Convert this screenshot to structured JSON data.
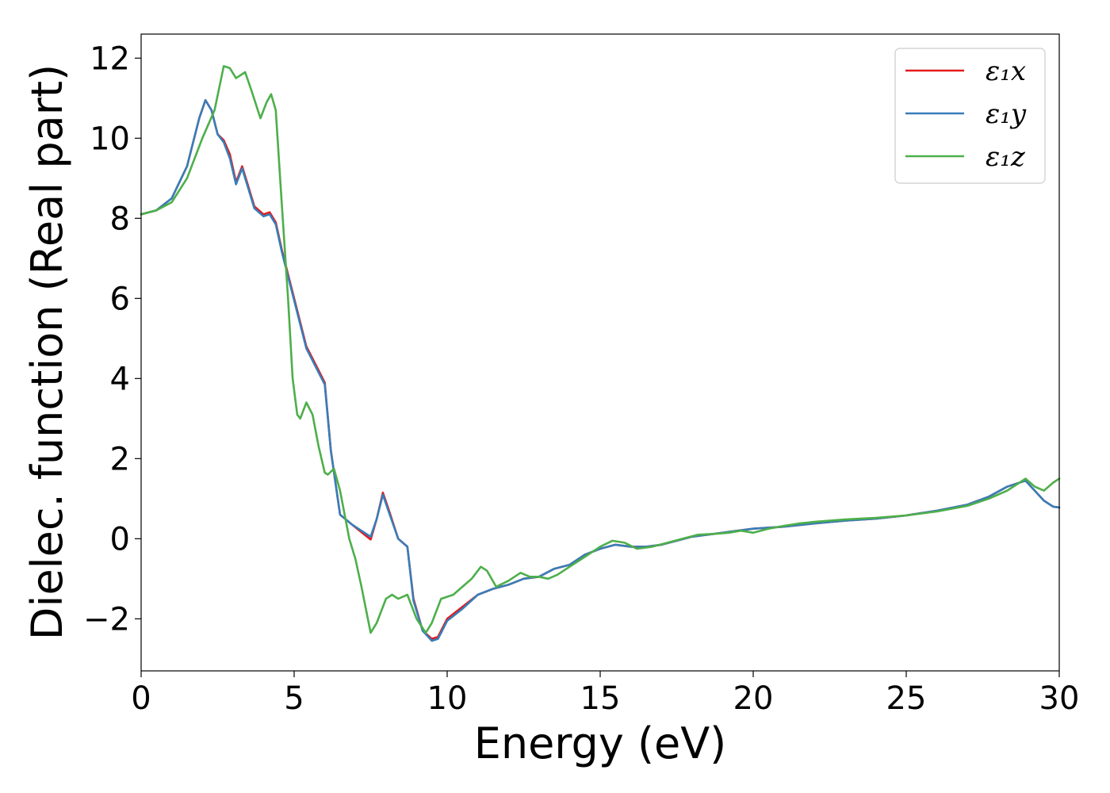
{
  "chart_data": {
    "type": "line",
    "xlabel": "Energy (eV)",
    "ylabel": "Dielec. function (Real part)",
    "xlim": [
      0,
      30
    ],
    "ylim": [
      -3.3,
      12.6
    ],
    "xticks": [
      0,
      5,
      10,
      15,
      20,
      25,
      30
    ],
    "xtick_labels": [
      "0",
      "5",
      "10",
      "15",
      "20",
      "25",
      "30"
    ],
    "yticks": [
      -2,
      0,
      2,
      4,
      6,
      8,
      10,
      12
    ],
    "ytick_labels": [
      "−2",
      "0",
      "2",
      "4",
      "6",
      "8",
      "10",
      "12"
    ],
    "grid": false,
    "legend_position": "top-right",
    "series": [
      {
        "name": "ε₁x",
        "color": "#e41a1c",
        "points": [
          [
            0,
            8.1
          ],
          [
            0.5,
            8.2
          ],
          [
            1.0,
            8.5
          ],
          [
            1.5,
            9.3
          ],
          [
            1.9,
            10.5
          ],
          [
            2.1,
            10.95
          ],
          [
            2.3,
            10.7
          ],
          [
            2.5,
            10.1
          ],
          [
            2.7,
            9.95
          ],
          [
            2.9,
            9.6
          ],
          [
            3.1,
            8.9
          ],
          [
            3.3,
            9.3
          ],
          [
            3.5,
            8.8
          ],
          [
            3.7,
            8.3
          ],
          [
            4.0,
            8.1
          ],
          [
            4.2,
            8.15
          ],
          [
            4.4,
            7.9
          ],
          [
            4.6,
            7.2
          ],
          [
            5.0,
            6.0
          ],
          [
            5.4,
            4.8
          ],
          [
            5.8,
            4.2
          ],
          [
            6.0,
            3.9
          ],
          [
            6.2,
            2.2
          ],
          [
            6.5,
            0.6
          ],
          [
            6.9,
            0.35
          ],
          [
            7.3,
            0.1
          ],
          [
            7.5,
            -0.02
          ],
          [
            7.7,
            0.5
          ],
          [
            7.9,
            1.15
          ],
          [
            8.1,
            0.7
          ],
          [
            8.4,
            0.0
          ],
          [
            8.7,
            -0.2
          ],
          [
            8.9,
            -1.5
          ],
          [
            9.2,
            -2.3
          ],
          [
            9.5,
            -2.5
          ],
          [
            9.7,
            -2.45
          ],
          [
            10.0,
            -2.0
          ],
          [
            10.5,
            -1.7
          ],
          [
            11.0,
            -1.4
          ],
          [
            11.5,
            -1.25
          ],
          [
            12.0,
            -1.15
          ],
          [
            12.5,
            -1.0
          ],
          [
            13.0,
            -0.95
          ],
          [
            13.5,
            -0.75
          ],
          [
            14.0,
            -0.65
          ],
          [
            14.5,
            -0.4
          ],
          [
            15.0,
            -0.25
          ],
          [
            15.5,
            -0.15
          ],
          [
            16.0,
            -0.2
          ],
          [
            16.5,
            -0.2
          ],
          [
            17.0,
            -0.15
          ],
          [
            17.5,
            -0.05
          ],
          [
            18.0,
            0.05
          ],
          [
            18.5,
            0.1
          ],
          [
            19.0,
            0.15
          ],
          [
            19.5,
            0.2
          ],
          [
            20.0,
            0.25
          ],
          [
            21.0,
            0.3
          ],
          [
            22.0,
            0.38
          ],
          [
            23.0,
            0.45
          ],
          [
            24.0,
            0.5
          ],
          [
            25.0,
            0.58
          ],
          [
            26.0,
            0.7
          ],
          [
            27.0,
            0.85
          ],
          [
            27.7,
            1.05
          ],
          [
            28.3,
            1.3
          ],
          [
            28.9,
            1.45
          ],
          [
            29.2,
            1.2
          ],
          [
            29.5,
            0.95
          ],
          [
            29.8,
            0.8
          ],
          [
            30.0,
            0.78
          ]
        ]
      },
      {
        "name": "ε₁y",
        "color": "#377eb8",
        "points": [
          [
            0,
            8.1
          ],
          [
            0.5,
            8.2
          ],
          [
            1.0,
            8.5
          ],
          [
            1.5,
            9.3
          ],
          [
            1.9,
            10.5
          ],
          [
            2.1,
            10.95
          ],
          [
            2.3,
            10.7
          ],
          [
            2.5,
            10.1
          ],
          [
            2.7,
            9.9
          ],
          [
            2.9,
            9.5
          ],
          [
            3.1,
            8.85
          ],
          [
            3.3,
            9.25
          ],
          [
            3.5,
            8.75
          ],
          [
            3.7,
            8.25
          ],
          [
            4.0,
            8.05
          ],
          [
            4.2,
            8.1
          ],
          [
            4.4,
            7.85
          ],
          [
            4.6,
            7.15
          ],
          [
            5.0,
            5.95
          ],
          [
            5.4,
            4.75
          ],
          [
            5.8,
            4.15
          ],
          [
            6.0,
            3.85
          ],
          [
            6.2,
            2.2
          ],
          [
            6.5,
            0.6
          ],
          [
            6.9,
            0.35
          ],
          [
            7.3,
            0.15
          ],
          [
            7.5,
            0.05
          ],
          [
            7.7,
            0.5
          ],
          [
            7.9,
            1.1
          ],
          [
            8.1,
            0.65
          ],
          [
            8.4,
            0.0
          ],
          [
            8.7,
            -0.2
          ],
          [
            8.9,
            -1.55
          ],
          [
            9.2,
            -2.3
          ],
          [
            9.5,
            -2.55
          ],
          [
            9.7,
            -2.5
          ],
          [
            10.0,
            -2.05
          ],
          [
            10.5,
            -1.75
          ],
          [
            11.0,
            -1.4
          ],
          [
            11.5,
            -1.25
          ],
          [
            12.0,
            -1.15
          ],
          [
            12.5,
            -1.0
          ],
          [
            13.0,
            -0.95
          ],
          [
            13.5,
            -0.75
          ],
          [
            14.0,
            -0.65
          ],
          [
            14.5,
            -0.4
          ],
          [
            15.0,
            -0.25
          ],
          [
            15.5,
            -0.15
          ],
          [
            16.0,
            -0.2
          ],
          [
            16.5,
            -0.2
          ],
          [
            17.0,
            -0.15
          ],
          [
            17.5,
            -0.05
          ],
          [
            18.0,
            0.05
          ],
          [
            18.5,
            0.1
          ],
          [
            19.0,
            0.15
          ],
          [
            19.5,
            0.2
          ],
          [
            20.0,
            0.25
          ],
          [
            21.0,
            0.3
          ],
          [
            22.0,
            0.38
          ],
          [
            23.0,
            0.45
          ],
          [
            24.0,
            0.5
          ],
          [
            25.0,
            0.58
          ],
          [
            26.0,
            0.7
          ],
          [
            27.0,
            0.85
          ],
          [
            27.7,
            1.05
          ],
          [
            28.3,
            1.3
          ],
          [
            28.9,
            1.45
          ],
          [
            29.2,
            1.2
          ],
          [
            29.5,
            0.95
          ],
          [
            29.8,
            0.8
          ],
          [
            30.0,
            0.78
          ]
        ]
      },
      {
        "name": "ε₁z",
        "color": "#4daf4a",
        "points": [
          [
            0,
            8.1
          ],
          [
            0.5,
            8.2
          ],
          [
            1.0,
            8.4
          ],
          [
            1.5,
            9.0
          ],
          [
            2.0,
            10.0
          ],
          [
            2.4,
            10.7
          ],
          [
            2.7,
            11.8
          ],
          [
            2.9,
            11.75
          ],
          [
            3.1,
            11.5
          ],
          [
            3.4,
            11.65
          ],
          [
            3.6,
            11.2
          ],
          [
            3.9,
            10.5
          ],
          [
            4.1,
            10.9
          ],
          [
            4.25,
            11.1
          ],
          [
            4.4,
            10.7
          ],
          [
            4.6,
            8.3
          ],
          [
            4.8,
            6.0
          ],
          [
            4.95,
            4.0
          ],
          [
            5.1,
            3.1
          ],
          [
            5.2,
            3.0
          ],
          [
            5.4,
            3.4
          ],
          [
            5.6,
            3.1
          ],
          [
            5.8,
            2.3
          ],
          [
            6.0,
            1.65
          ],
          [
            6.1,
            1.6
          ],
          [
            6.3,
            1.75
          ],
          [
            6.5,
            1.2
          ],
          [
            6.8,
            0.0
          ],
          [
            7.0,
            -0.5
          ],
          [
            7.2,
            -1.2
          ],
          [
            7.5,
            -2.35
          ],
          [
            7.7,
            -2.1
          ],
          [
            8.0,
            -1.5
          ],
          [
            8.2,
            -1.4
          ],
          [
            8.4,
            -1.5
          ],
          [
            8.7,
            -1.4
          ],
          [
            9.0,
            -2.0
          ],
          [
            9.3,
            -2.35
          ],
          [
            9.5,
            -2.1
          ],
          [
            9.8,
            -1.5
          ],
          [
            10.2,
            -1.4
          ],
          [
            10.5,
            -1.2
          ],
          [
            10.8,
            -1.0
          ],
          [
            11.1,
            -0.7
          ],
          [
            11.3,
            -0.8
          ],
          [
            11.6,
            -1.2
          ],
          [
            12.0,
            -1.05
          ],
          [
            12.4,
            -0.85
          ],
          [
            12.7,
            -0.95
          ],
          [
            13.0,
            -0.95
          ],
          [
            13.3,
            -1.0
          ],
          [
            13.6,
            -0.9
          ],
          [
            14.0,
            -0.7
          ],
          [
            14.5,
            -0.45
          ],
          [
            15.0,
            -0.2
          ],
          [
            15.4,
            -0.05
          ],
          [
            15.8,
            -0.1
          ],
          [
            16.2,
            -0.25
          ],
          [
            16.7,
            -0.2
          ],
          [
            17.2,
            -0.1
          ],
          [
            17.7,
            0.0
          ],
          [
            18.2,
            0.1
          ],
          [
            18.7,
            0.12
          ],
          [
            19.2,
            0.15
          ],
          [
            19.6,
            0.2
          ],
          [
            20.0,
            0.15
          ],
          [
            20.5,
            0.25
          ],
          [
            21.0,
            0.32
          ],
          [
            21.5,
            0.38
          ],
          [
            22.0,
            0.42
          ],
          [
            22.5,
            0.45
          ],
          [
            23.0,
            0.48
          ],
          [
            24.0,
            0.52
          ],
          [
            25.0,
            0.58
          ],
          [
            26.0,
            0.68
          ],
          [
            27.0,
            0.82
          ],
          [
            27.7,
            1.0
          ],
          [
            28.3,
            1.2
          ],
          [
            28.9,
            1.5
          ],
          [
            29.2,
            1.3
          ],
          [
            29.5,
            1.2
          ],
          [
            29.8,
            1.4
          ],
          [
            30.0,
            1.5
          ]
        ]
      }
    ]
  }
}
